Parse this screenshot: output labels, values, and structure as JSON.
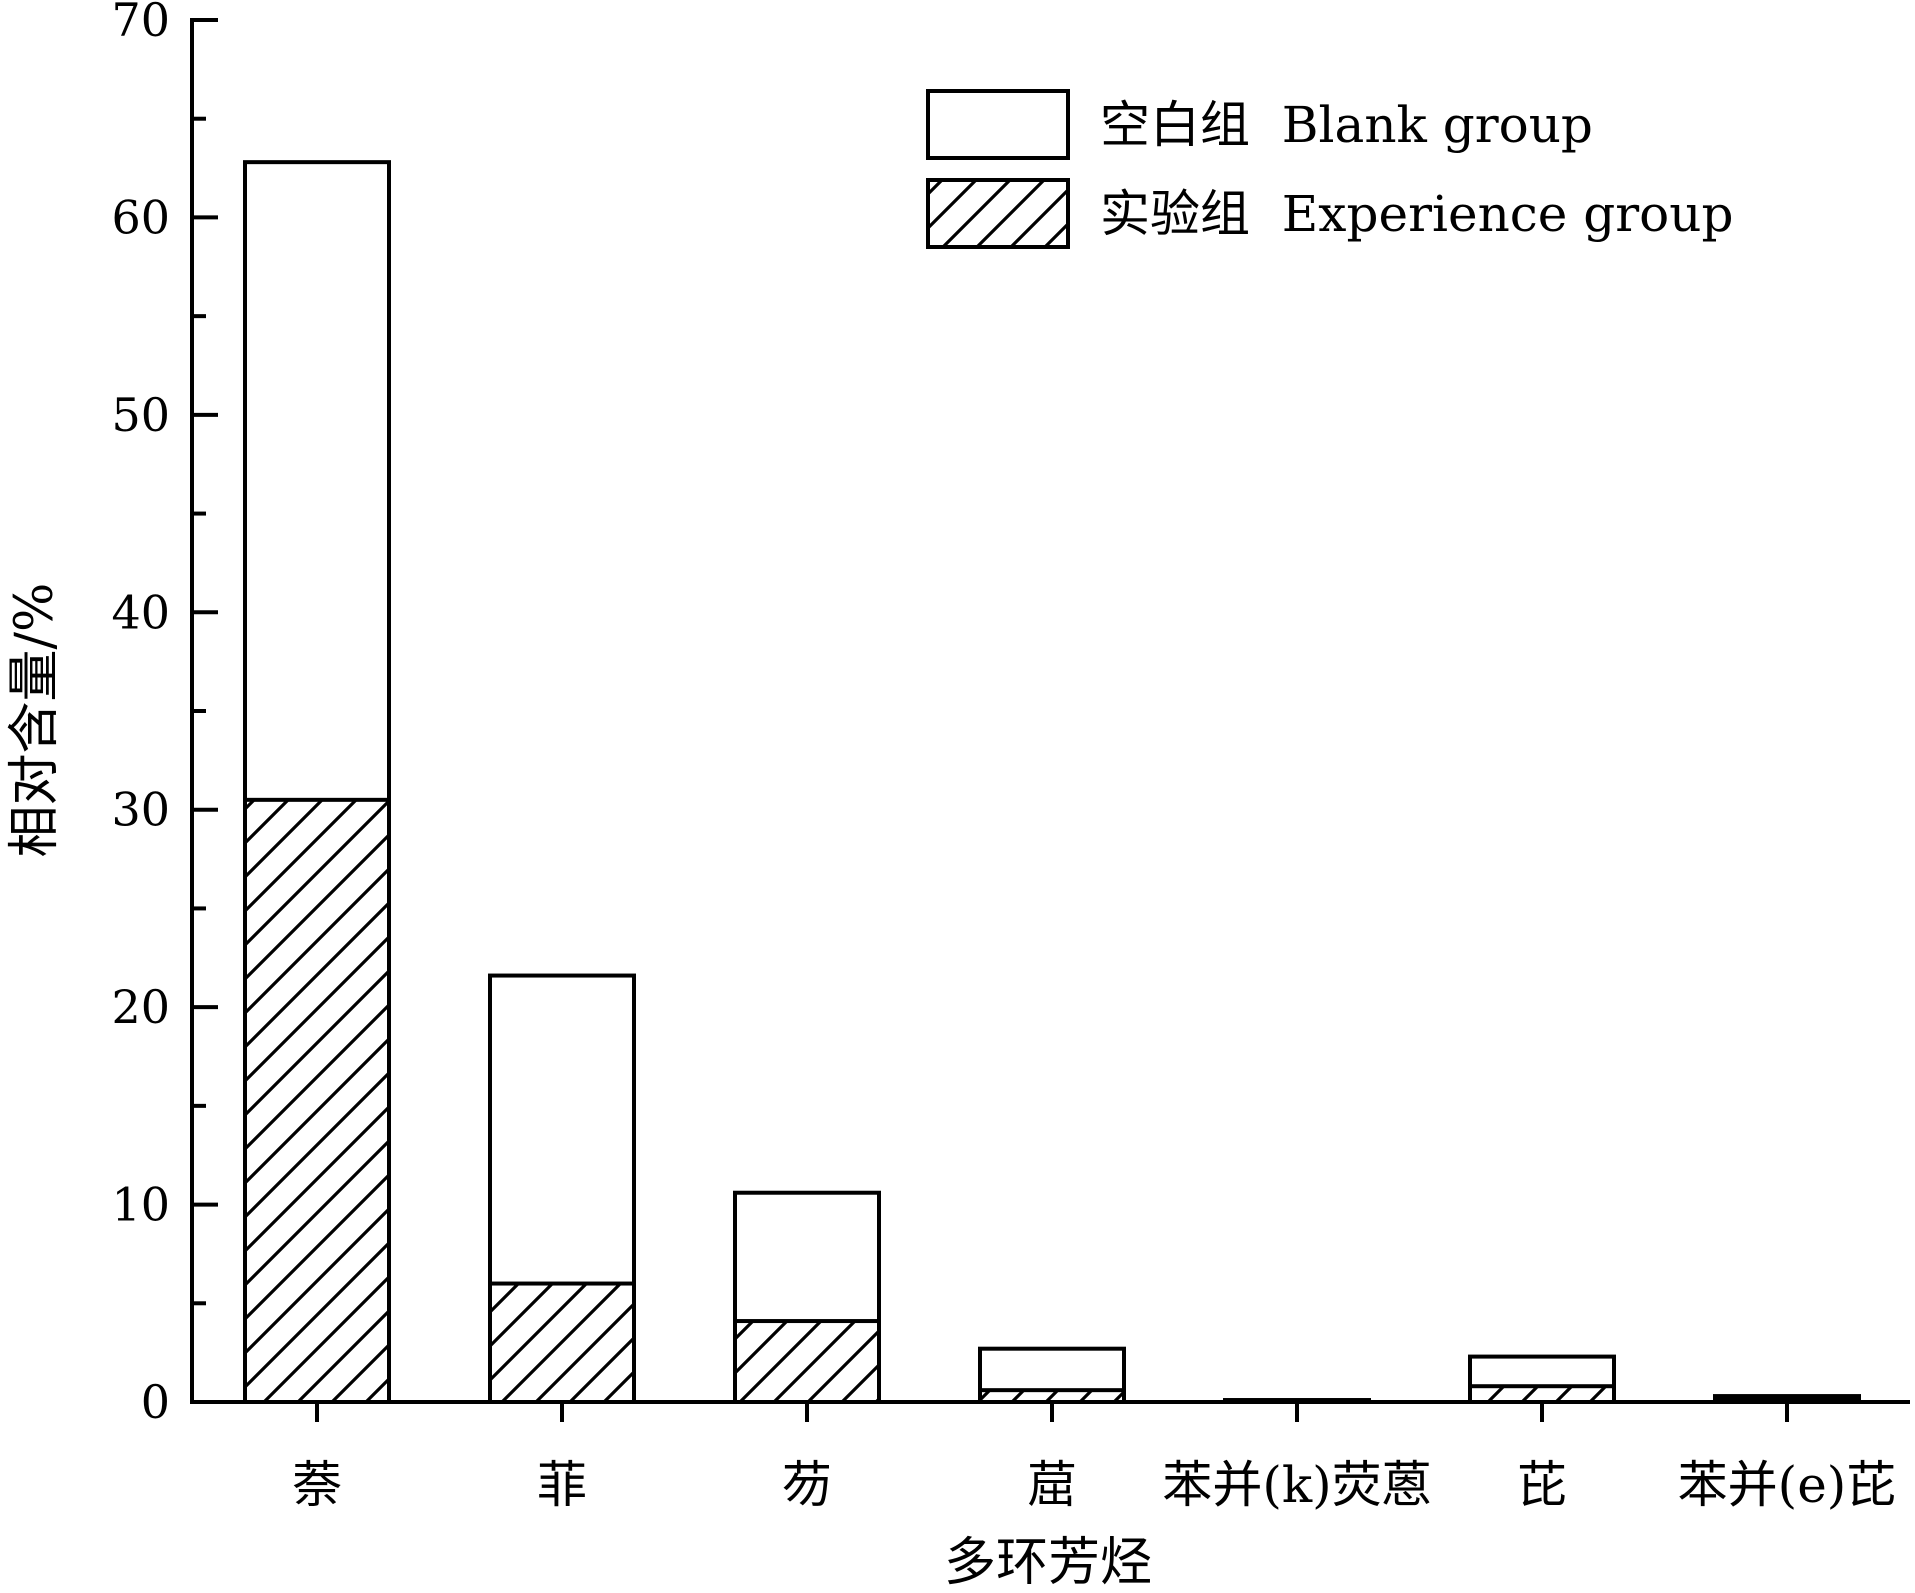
{
  "chart_data": {
    "type": "bar",
    "stacked": false,
    "overlay": true,
    "title": "",
    "xlabel": "多环芳烃",
    "ylabel": "相对含量/%",
    "ylim": [
      0,
      70
    ],
    "yticks": [
      0,
      10,
      20,
      30,
      40,
      50,
      60,
      70
    ],
    "categories": [
      "萘",
      "菲",
      "芴",
      "䓛",
      "苯并(k)荧蒽",
      "芘",
      "苯并(e)芘"
    ],
    "series": [
      {
        "name": "空白组  Blank group",
        "fill": "none",
        "values": [
          62.8,
          21.6,
          10.6,
          2.7,
          0.1,
          2.3,
          0.3
        ]
      },
      {
        "name": "实验组  Experience group",
        "fill": "hatch",
        "values": [
          30.5,
          6.0,
          4.1,
          0.6,
          0.0,
          0.8,
          0.2
        ]
      }
    ],
    "grid": false,
    "legend_position": "top-right",
    "colors": {
      "stroke": "#000000",
      "background": "#ffffff"
    }
  }
}
